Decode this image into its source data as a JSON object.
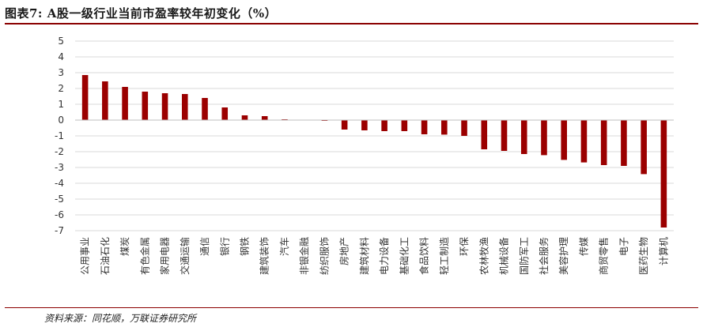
{
  "header": {
    "title": "图表7: A股一级行业当前市盈率较年初变化（%）"
  },
  "footer": {
    "source": "资料来源：同花顺，万联证券研究所"
  },
  "colors": {
    "bar": "#9b0000",
    "accent_rule": "#8b0000",
    "grid": "#d9d9d9",
    "axis_text": "#333333"
  },
  "chart_data": {
    "type": "bar",
    "ylim": [
      -7,
      5
    ],
    "yticks": [
      5,
      4,
      3,
      2,
      1,
      0,
      -1,
      -2,
      -3,
      -4,
      -5,
      -6,
      -7
    ],
    "grid": true,
    "categories": [
      "公用事业",
      "石油石化",
      "煤炭",
      "有色金属",
      "家用电器",
      "交通运输",
      "通信",
      "银行",
      "钢铁",
      "建筑装饰",
      "汽车",
      "非银金融",
      "纺织服饰",
      "房地产",
      "建筑材料",
      "电力设备",
      "基础化工",
      "食品饮料",
      "轻工制造",
      "环保",
      "农林牧渔",
      "机械设备",
      "国防军工",
      "社会服务",
      "美容护理",
      "传媒",
      "商贸零售",
      "电子",
      "医药生物",
      "计算机"
    ],
    "values": [
      2.85,
      2.45,
      2.1,
      1.8,
      1.7,
      1.65,
      1.4,
      0.8,
      0.3,
      0.25,
      0.05,
      0.02,
      -0.05,
      -0.6,
      -0.65,
      -0.7,
      -0.7,
      -0.9,
      -0.92,
      -1.0,
      -1.85,
      -1.95,
      -2.15,
      -2.22,
      -2.52,
      -2.68,
      -2.85,
      -2.9,
      -3.42,
      -6.8
    ]
  }
}
